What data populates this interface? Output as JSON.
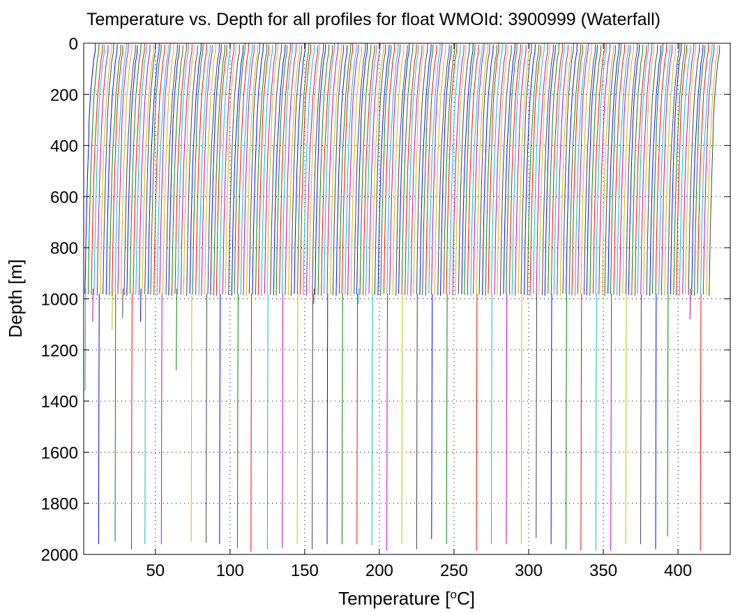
{
  "chart_data": {
    "type": "line",
    "title": "Temperature vs. Depth for all profiles for float WMOId: 3900999 (Waterfall)",
    "xlabel": "Temperature [°C]",
    "xlabel_parts": {
      "prefix": "Temperature [",
      "superscript": "o",
      "suffix": "C]"
    },
    "ylabel": "Depth [m]",
    "xlim": [
      2,
      435
    ],
    "ylim": [
      0,
      2000
    ],
    "y_reversed": true,
    "grid": true,
    "grid_style": "dotted",
    "x_ticks": [
      50,
      100,
      150,
      200,
      250,
      300,
      350,
      400
    ],
    "y_ticks": [
      0,
      200,
      400,
      600,
      800,
      1000,
      1200,
      1400,
      1600,
      1800,
      2000
    ],
    "x_tick_labels": [
      "50",
      "100",
      "150",
      "200",
      "250",
      "300",
      "350",
      "400"
    ],
    "y_tick_labels": [
      "0",
      "200",
      "400",
      "600",
      "800",
      "1000",
      "1200",
      "1400",
      "1600",
      "1800",
      "2000"
    ],
    "waterfall": {
      "profile_count": 210,
      "offset_step": 2,
      "color_cycle": [
        "#0000ff",
        "#008000",
        "#ff0000",
        "#00bfbf",
        "#bf00bf",
        "#bfbf00",
        "#404040"
      ],
      "typical_max_depth": 980,
      "deep_profile_max_depth": 1970,
      "profile_shape": {
        "depth": [
          0,
          30,
          70,
          120,
          200,
          300,
          400,
          500,
          600,
          700,
          800,
          900,
          980
        ],
        "temperature": [
          13.5,
          13.3,
          12.0,
          11.2,
          9.8,
          8.8,
          8.0,
          7.3,
          6.8,
          6.3,
          5.9,
          5.6,
          5.3
        ]
      },
      "deep_tail": {
        "depth": [
          980,
          1200,
          1500,
          1800,
          1970
        ],
        "temperature": [
          5.3,
          5.0,
          4.7,
          4.4,
          4.2
        ]
      },
      "deep_profile_x_positions": [
        12,
        23,
        34,
        43,
        54,
        74,
        84,
        93,
        105,
        114,
        125,
        135,
        145,
        155,
        165,
        175,
        185,
        195,
        205,
        215,
        225,
        235,
        245,
        265,
        275,
        285,
        295,
        305,
        315,
        325,
        335,
        345,
        355,
        365,
        375,
        385,
        393,
        415
      ],
      "deep_profile_max_depths": [
        1960,
        1950,
        1980,
        1960,
        1960,
        1950,
        1955,
        1960,
        1975,
        1990,
        1980,
        1975,
        1960,
        1980,
        1960,
        1960,
        1960,
        1965,
        1985,
        1960,
        1980,
        1940,
        1960,
        1985,
        1960,
        1960,
        1960,
        1935,
        1960,
        1980,
        1985,
        1985,
        1985,
        1960,
        1960,
        1980,
        1930,
        1985
      ],
      "mid_profile_x_positions": [
        3,
        8,
        21,
        28,
        40,
        64,
        156,
        186,
        408
      ],
      "mid_profile_max_depths": [
        1360,
        1090,
        1120,
        1075,
        1090,
        1280,
        1020,
        1020,
        1080
      ]
    }
  }
}
